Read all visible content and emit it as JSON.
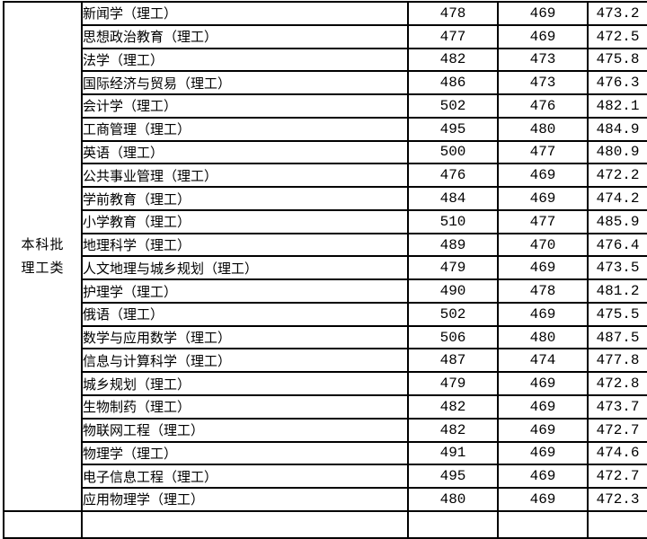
{
  "colors": {
    "background": "#ffffff",
    "border": "#000000",
    "text": "#000000"
  },
  "table": {
    "category_label": [
      "本科批",
      "理工类"
    ],
    "rows": [
      {
        "major": "新闻学（理工）",
        "values": [
          "478",
          "469",
          "473.2"
        ]
      },
      {
        "major": "思想政治教育（理工）",
        "values": [
          "477",
          "469",
          "472.5"
        ]
      },
      {
        "major": "法学（理工）",
        "values": [
          "482",
          "473",
          "475.8"
        ]
      },
      {
        "major": "国际经济与贸易（理工）",
        "values": [
          "486",
          "473",
          "476.3"
        ]
      },
      {
        "major": "会计学（理工）",
        "values": [
          "502",
          "476",
          "482.1"
        ]
      },
      {
        "major": "工商管理（理工）",
        "values": [
          "495",
          "480",
          "484.9"
        ]
      },
      {
        "major": "英语（理工）",
        "values": [
          "500",
          "477",
          "480.9"
        ]
      },
      {
        "major": "公共事业管理（理工）",
        "values": [
          "476",
          "469",
          "472.2"
        ]
      },
      {
        "major": "学前教育（理工）",
        "values": [
          "484",
          "469",
          "474.2"
        ]
      },
      {
        "major": "小学教育（理工）",
        "values": [
          "510",
          "477",
          "485.9"
        ]
      },
      {
        "major": "地理科学（理工）",
        "values": [
          "489",
          "470",
          "476.4"
        ]
      },
      {
        "major": "人文地理与城乡规划（理工）",
        "values": [
          "479",
          "469",
          "473.5"
        ]
      },
      {
        "major": "护理学（理工）",
        "values": [
          "490",
          "478",
          "481.2"
        ]
      },
      {
        "major": "俄语（理工）",
        "values": [
          "502",
          "469",
          "475.5"
        ]
      },
      {
        "major": "数学与应用数学（理工）",
        "values": [
          "506",
          "480",
          "487.5"
        ]
      },
      {
        "major": "信息与计算科学（理工）",
        "values": [
          "487",
          "474",
          "477.8"
        ]
      },
      {
        "major": "城乡规划（理工）",
        "values": [
          "479",
          "469",
          "472.8"
        ]
      },
      {
        "major": "生物制药（理工）",
        "values": [
          "482",
          "469",
          "473.7"
        ]
      },
      {
        "major": "物联网工程（理工）",
        "values": [
          "482",
          "469",
          "472.7"
        ]
      },
      {
        "major": "物理学（理工）",
        "values": [
          "491",
          "469",
          "474.6"
        ]
      },
      {
        "major": "电子信息工程（理工）",
        "values": [
          "495",
          "469",
          "472.7"
        ]
      },
      {
        "major": "应用物理学（理工）",
        "values": [
          "480",
          "469",
          "472.3"
        ]
      }
    ]
  }
}
